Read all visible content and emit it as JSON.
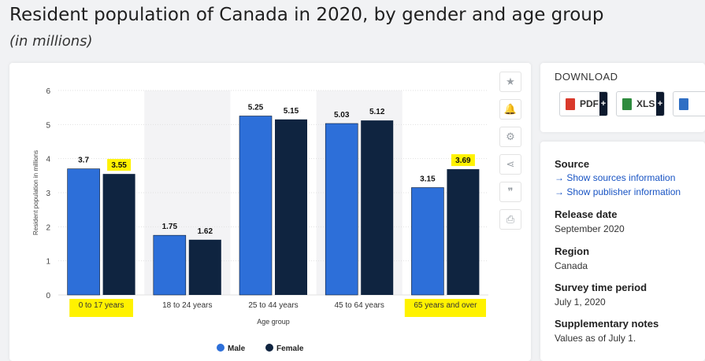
{
  "page": {
    "title": "Resident population of Canada in 2020, by gender and age group",
    "subtitle": "(in millions)"
  },
  "tools": [
    {
      "icon": "star-icon",
      "glyph": "★"
    },
    {
      "icon": "bell-icon",
      "glyph": "🔔"
    },
    {
      "icon": "gear-icon",
      "glyph": "⚙"
    },
    {
      "icon": "share-icon",
      "glyph": "⋖"
    },
    {
      "icon": "quote-icon",
      "glyph": "❞"
    },
    {
      "icon": "print-icon",
      "glyph": "⎙"
    }
  ],
  "download": {
    "title": "DOWNLOAD",
    "buttons": [
      {
        "label": "PDF",
        "plus": "+",
        "color": "#d9392b"
      },
      {
        "label": "XLS",
        "plus": "+",
        "color": "#2e8b3e"
      },
      {
        "label": "",
        "plus": "",
        "color": "#2f6fc4"
      }
    ]
  },
  "info": {
    "source_label": "Source",
    "source_links": [
      "Show sources information",
      "Show publisher information"
    ],
    "release_label": "Release date",
    "release_value": "September 2020",
    "region_label": "Region",
    "region_value": "Canada",
    "survey_label": "Survey time period",
    "survey_value": "July 1, 2020",
    "notes_label": "Supplementary notes",
    "notes_value": "Values as of July 1."
  },
  "chart_data": {
    "type": "bar",
    "categories": [
      "0 to 17 years",
      "18 to 24 years",
      "25 to 44 years",
      "45 to 64 years",
      "65 years and over"
    ],
    "series": [
      {
        "name": "Male",
        "color": "#2d6fd9",
        "values": [
          3.7,
          1.75,
          5.25,
          5.03,
          3.15
        ]
      },
      {
        "name": "Female",
        "color": "#0f2440",
        "values": [
          3.55,
          1.62,
          5.15,
          5.12,
          3.69
        ]
      }
    ],
    "xlabel": "Age group",
    "ylabel": "Resident population in millions",
    "ylim": [
      0,
      6
    ],
    "yticks": [
      0,
      1,
      2,
      3,
      4,
      5,
      6
    ],
    "grid": true,
    "legend_position": "bottom-center",
    "highlight_color": "#fff200",
    "highlighted_categories": [
      0,
      4
    ],
    "highlighted_values": [
      {
        "series": 1,
        "index": 0
      },
      {
        "series": 1,
        "index": 4
      }
    ]
  }
}
